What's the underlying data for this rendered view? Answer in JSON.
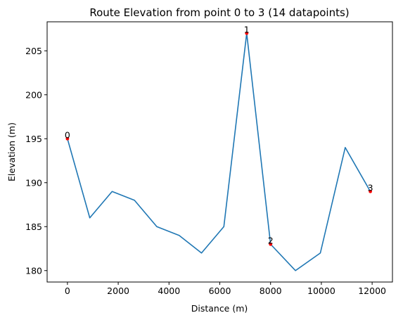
{
  "chart_data": {
    "type": "line",
    "title": "Route Elevation from point 0 to 3 (14 datapoints)",
    "xlabel": "Distance (m)",
    "ylabel": "Elevation (m)",
    "xlim": [
      -800,
      12800
    ],
    "ylim": [
      178.7,
      208.3
    ],
    "xticks": [
      0,
      2000,
      4000,
      6000,
      8000,
      10000,
      12000
    ],
    "yticks": [
      180,
      185,
      190,
      195,
      200,
      205
    ],
    "grid": false,
    "series": [
      {
        "x": [
          0,
          880,
          1760,
          2640,
          3520,
          4400,
          5280,
          6160,
          7060,
          8000,
          8980,
          9960,
          10940,
          11930
        ],
        "y": [
          195,
          186,
          189,
          188,
          185,
          184,
          182,
          185,
          207,
          183,
          180,
          182,
          194,
          189
        ],
        "color": "#1f77b4"
      }
    ],
    "points": [
      {
        "label": "0",
        "x": 0,
        "y": 195
      },
      {
        "label": "1",
        "x": 7060,
        "y": 207
      },
      {
        "label": "2",
        "x": 8000,
        "y": 183
      },
      {
        "label": "3",
        "x": 11930,
        "y": 189
      }
    ],
    "point_color": "#ff0000"
  }
}
